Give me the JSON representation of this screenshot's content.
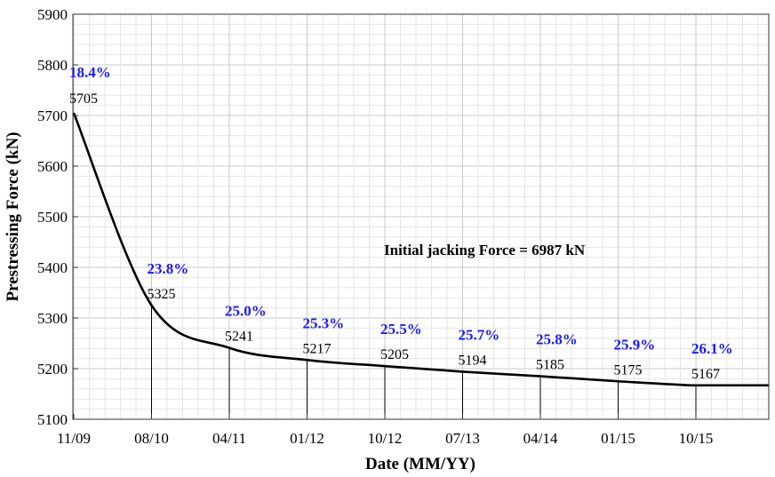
{
  "chart_data": {
    "type": "line",
    "xlabel": "Date (MM/YY)",
    "ylabel": "Prestressing Force (kN)",
    "ylim": [
      5100,
      5900
    ],
    "yticks": [
      5100,
      5200,
      5300,
      5400,
      5500,
      5600,
      5700,
      5800,
      5900
    ],
    "xticks": [
      "11/09",
      "08/10",
      "04/11",
      "01/12",
      "10/12",
      "07/13",
      "04/14",
      "01/15",
      "10/15"
    ],
    "grid": "minor",
    "annotation": "Initial jacking Force = 6987 kN",
    "series": [
      {
        "color": "#000000",
        "x": [
          "11/09",
          "08/10",
          "04/11",
          "01/12",
          "10/12",
          "07/13",
          "04/14",
          "01/15",
          "10/15"
        ],
        "values": [
          5705,
          5325,
          5241,
          5217,
          5205,
          5194,
          5185,
          5175,
          5167
        ]
      }
    ],
    "points": [
      {
        "x": "11/09",
        "value": "5705",
        "loss": "18.4%"
      },
      {
        "x": "08/10",
        "value": "5325",
        "loss": "23.8%"
      },
      {
        "x": "04/11",
        "value": "5241",
        "loss": "25.0%"
      },
      {
        "x": "01/12",
        "value": "5217",
        "loss": "25.3%"
      },
      {
        "x": "10/12",
        "value": "5205",
        "loss": "25.5%"
      },
      {
        "x": "07/13",
        "value": "5194",
        "loss": "25.7%"
      },
      {
        "x": "04/14",
        "value": "5185",
        "loss": "25.8%"
      },
      {
        "x": "01/15",
        "value": "5175",
        "loss": "25.9%"
      },
      {
        "x": "10/15",
        "value": "5167",
        "loss": "26.1%"
      }
    ],
    "loss_color": "#1a1aff"
  }
}
